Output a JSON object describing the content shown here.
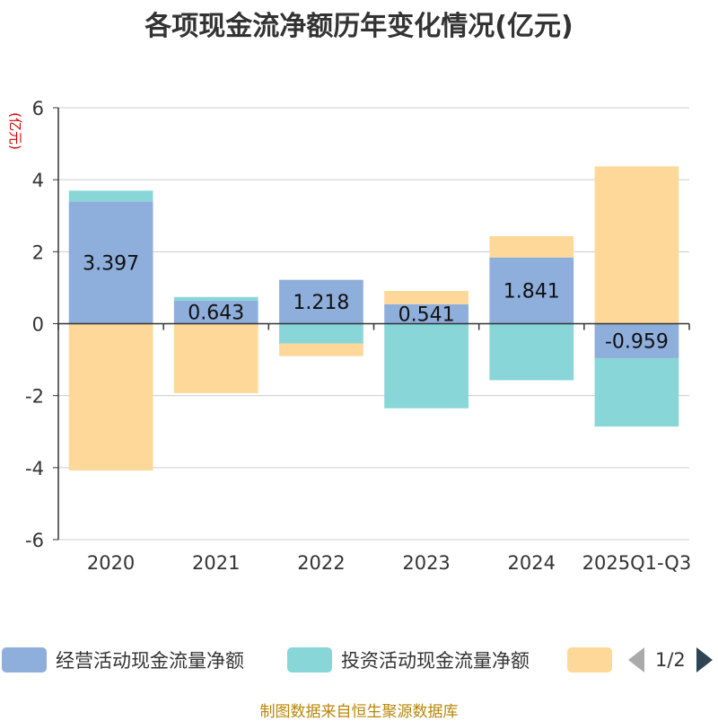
{
  "title": "各项现金流净额历年变化情况(亿元)",
  "source": "制图数据来自恒生聚源数据库",
  "legend_page": "1/2",
  "chart_data": {
    "type": "bar",
    "stacked": true,
    "title": "各项现金流净额历年变化情况(亿元)",
    "ylabel": "(亿元)",
    "xlabel": "",
    "categories": [
      "2020",
      "2021",
      "2022",
      "2023",
      "2024",
      "2025Q1-Q3"
    ],
    "ylim": [
      -6,
      6
    ],
    "yticks": [
      6,
      4,
      2,
      0,
      -2,
      -4,
      -6
    ],
    "grid": true,
    "legend_position": "bottom",
    "series": [
      {
        "name": "经营活动现金流量净额",
        "color": "#8eaedb",
        "values": [
          3.397,
          0.643,
          1.218,
          0.541,
          1.841,
          -0.959
        ],
        "labeled": true
      },
      {
        "name": "投资活动现金流量净额",
        "color": "#88d6d8",
        "values": [
          0.3,
          0.1,
          -0.55,
          -2.35,
          -1.57,
          -1.9
        ],
        "labeled": false
      },
      {
        "name": "",
        "color": "#fed898",
        "values": [
          -4.08,
          -1.93,
          -0.35,
          0.37,
          0.59,
          4.37
        ],
        "labeled": false
      }
    ]
  }
}
